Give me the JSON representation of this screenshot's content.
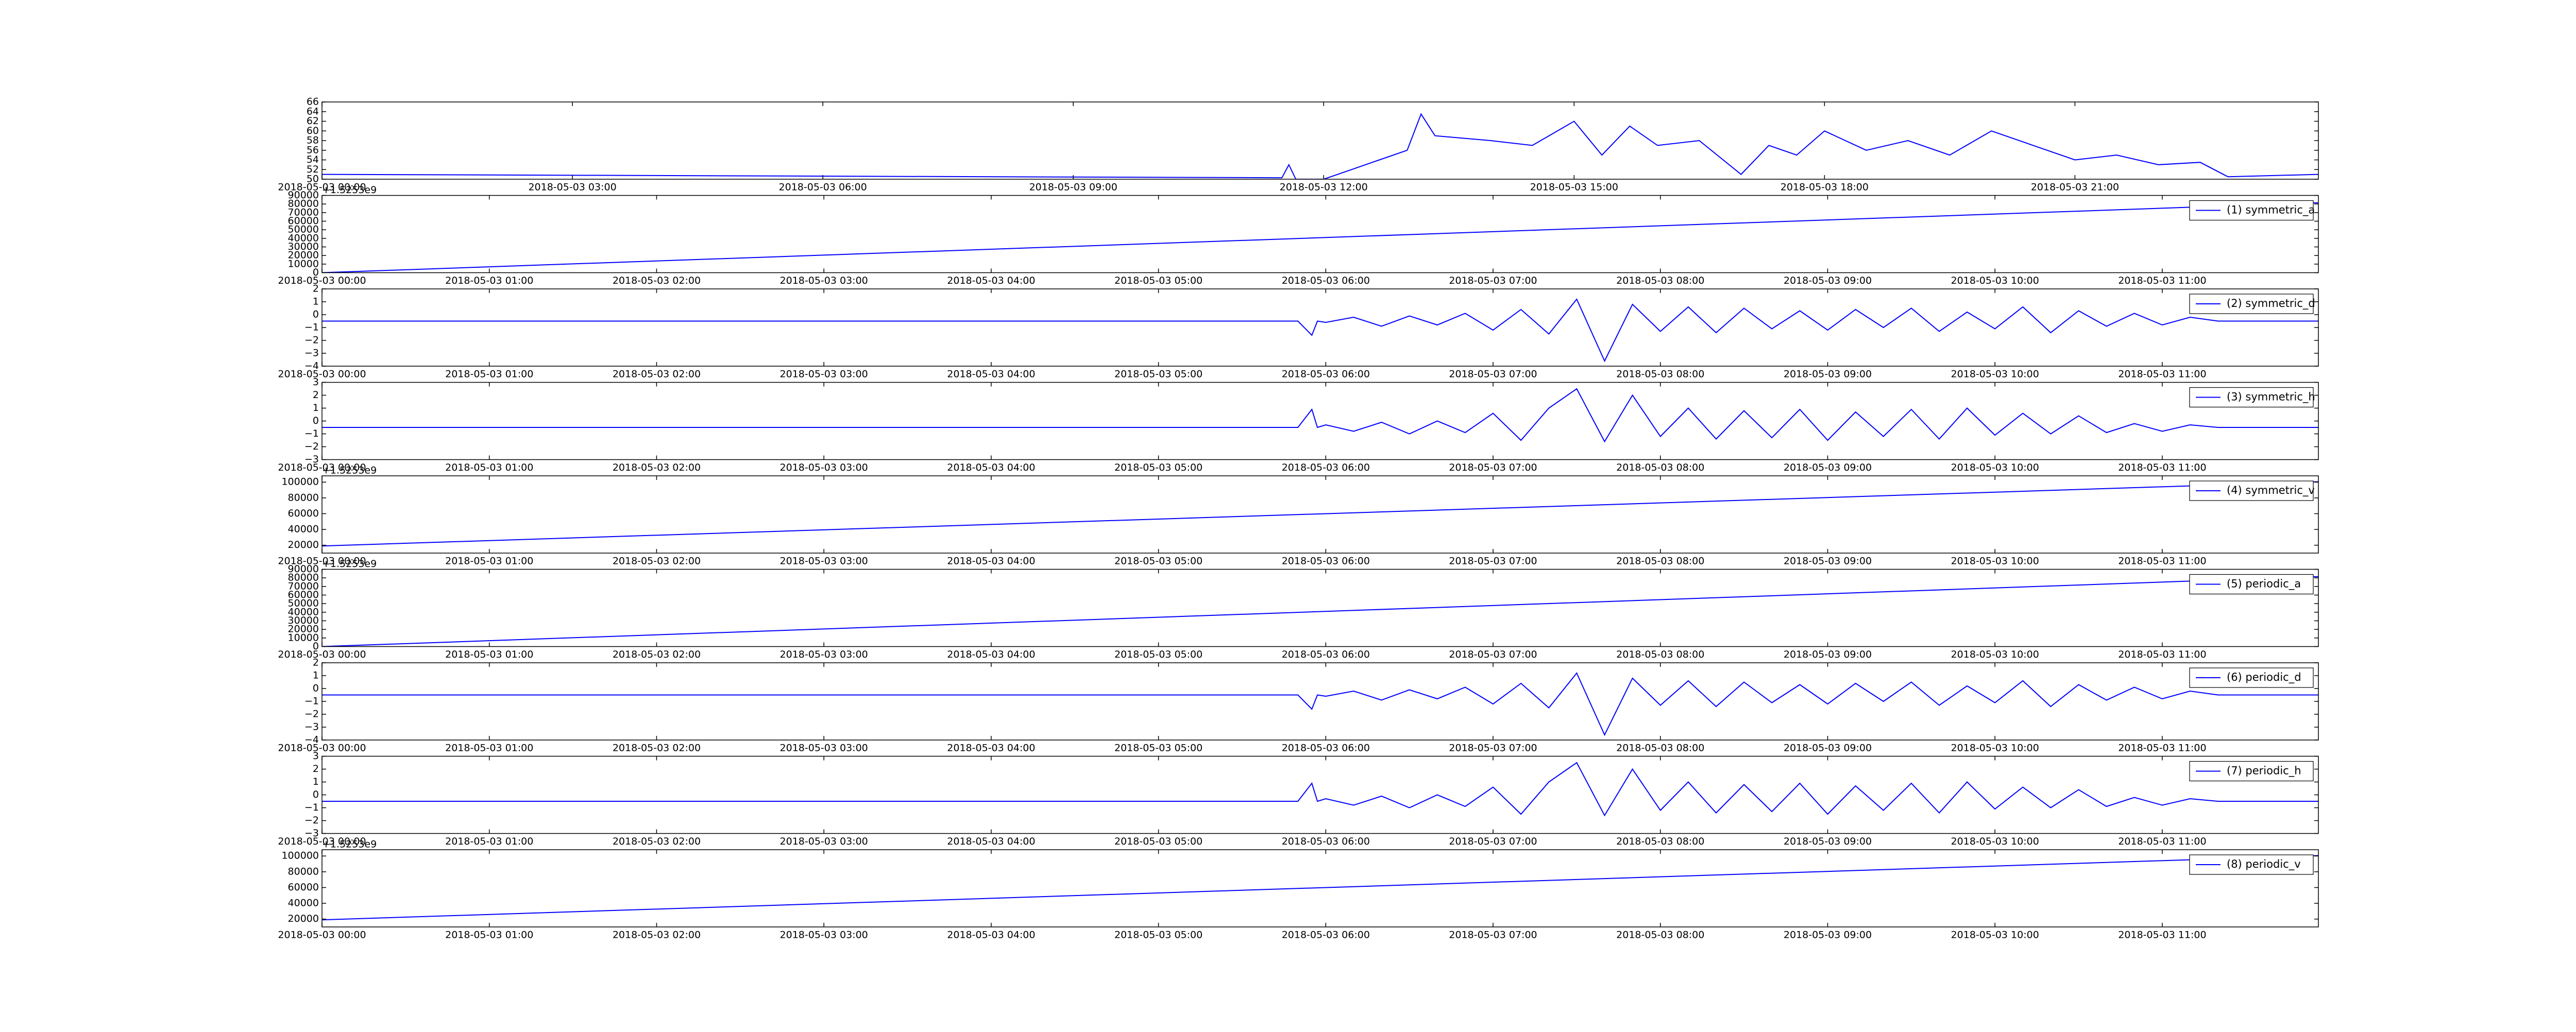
{
  "chart_data": [
    {
      "type": "line",
      "x": [
        "2018-05-03 00:00",
        "2018-05-03 11:30",
        "2018-05-03 11:35",
        "2018-05-03 11:40",
        "2018-05-03 12:00",
        "2018-05-03 12:20",
        "2018-05-03 12:40",
        "2018-05-03 13:00",
        "2018-05-03 13:10",
        "2018-05-03 13:20",
        "2018-05-03 14:00",
        "2018-05-03 14:30",
        "2018-05-03 15:00",
        "2018-05-03 15:20",
        "2018-05-03 15:40",
        "2018-05-03 16:00",
        "2018-05-03 16:30",
        "2018-05-03 17:00",
        "2018-05-03 17:20",
        "2018-05-03 17:40",
        "2018-05-03 18:00",
        "2018-05-03 18:30",
        "2018-05-03 19:00",
        "2018-05-03 19:30",
        "2018-05-03 20:00",
        "2018-05-03 20:30",
        "2018-05-03 21:00",
        "2018-05-03 21:30",
        "2018-05-03 22:00",
        "2018-05-03 22:30",
        "2018-05-03 22:50",
        "2018-05-03 23:55"
      ],
      "series": [
        {
          "color": "#0000ff",
          "values": [
            51,
            50.3,
            53,
            50,
            50,
            52,
            54,
            56,
            63.5,
            59,
            58,
            57,
            62,
            55,
            61,
            57,
            58,
            51,
            57,
            55,
            60,
            56,
            58,
            55,
            60,
            57,
            54,
            55,
            53,
            53.5,
            50.5,
            51
          ]
        }
      ],
      "xlim": [
        "2018-05-03 00:00",
        "2018-05-03 23:55"
      ],
      "xticks": [
        "2018-05-03 00:00",
        "2018-05-03 03:00",
        "2018-05-03 06:00",
        "2018-05-03 09:00",
        "2018-05-03 12:00",
        "2018-05-03 15:00",
        "2018-05-03 18:00",
        "2018-05-03 21:00"
      ],
      "ylim": [
        50,
        66
      ],
      "yticks": [
        50,
        52,
        54,
        56,
        58,
        60,
        62,
        64,
        66
      ]
    },
    {
      "type": "line",
      "x": [
        "2018-05-03 00:00",
        "2018-05-03 11:56"
      ],
      "offset_text": "+1.5253e9",
      "series": [
        {
          "name": "(1) symmetric_a",
          "color": "#0000ff",
          "values": [
            0,
            81500
          ]
        }
      ],
      "xlim": [
        "2018-05-03 00:00",
        "2018-05-03 11:56"
      ],
      "xticks": [
        "2018-05-03 00:00",
        "2018-05-03 01:00",
        "2018-05-03 02:00",
        "2018-05-03 03:00",
        "2018-05-03 04:00",
        "2018-05-03 05:00",
        "2018-05-03 06:00",
        "2018-05-03 07:00",
        "2018-05-03 08:00",
        "2018-05-03 09:00",
        "2018-05-03 10:00",
        "2018-05-03 11:00"
      ],
      "ylim": [
        0,
        90000
      ],
      "yticks": [
        0,
        10000,
        20000,
        30000,
        40000,
        50000,
        60000,
        70000,
        80000,
        90000
      ],
      "legend": "upper right"
    },
    {
      "type": "line",
      "x": [
        "2018-05-03 00:00",
        "2018-05-03 05:50",
        "2018-05-03 05:55",
        "2018-05-03 05:57",
        "2018-05-03 06:00",
        "2018-05-03 06:10",
        "2018-05-03 06:20",
        "2018-05-03 06:30",
        "2018-05-03 06:40",
        "2018-05-03 06:50",
        "2018-05-03 07:00",
        "2018-05-03 07:10",
        "2018-05-03 07:20",
        "2018-05-03 07:30",
        "2018-05-03 07:40",
        "2018-05-03 07:50",
        "2018-05-03 08:00",
        "2018-05-03 08:10",
        "2018-05-03 08:20",
        "2018-05-03 08:30",
        "2018-05-03 08:40",
        "2018-05-03 08:50",
        "2018-05-03 09:00",
        "2018-05-03 09:10",
        "2018-05-03 09:20",
        "2018-05-03 09:30",
        "2018-05-03 09:40",
        "2018-05-03 09:50",
        "2018-05-03 10:00",
        "2018-05-03 10:10",
        "2018-05-03 10:20",
        "2018-05-03 10:30",
        "2018-05-03 10:40",
        "2018-05-03 10:50",
        "2018-05-03 11:00",
        "2018-05-03 11:10",
        "2018-05-03 11:20",
        "2018-05-03 11:56"
      ],
      "series": [
        {
          "name": "(2) symmetric_d",
          "color": "#0000ff",
          "values": [
            -0.5,
            -0.5,
            -1.6,
            -0.5,
            -0.6,
            -0.2,
            -0.9,
            -0.1,
            -0.8,
            0.1,
            -1.2,
            0.4,
            -1.5,
            1.2,
            -3.6,
            0.8,
            -1.3,
            0.6,
            -1.4,
            0.5,
            -1.1,
            0.3,
            -1.2,
            0.4,
            -1.0,
            0.5,
            -1.3,
            0.2,
            -1.1,
            0.6,
            -1.4,
            0.3,
            -0.9,
            0.1,
            -0.8,
            -0.2,
            -0.5,
            -0.5
          ]
        }
      ],
      "xlim": [
        "2018-05-03 00:00",
        "2018-05-03 11:56"
      ],
      "xticks": [
        "2018-05-03 00:00",
        "2018-05-03 01:00",
        "2018-05-03 02:00",
        "2018-05-03 03:00",
        "2018-05-03 04:00",
        "2018-05-03 05:00",
        "2018-05-03 06:00",
        "2018-05-03 07:00",
        "2018-05-03 08:00",
        "2018-05-03 09:00",
        "2018-05-03 10:00",
        "2018-05-03 11:00"
      ],
      "ylim": [
        -4,
        2
      ],
      "yticks": [
        {
          "value": -4,
          "label": "−4"
        },
        {
          "value": -3,
          "label": "−3"
        },
        {
          "value": -2,
          "label": "−2"
        },
        {
          "value": -1,
          "label": "−1"
        },
        0,
        1,
        2
      ],
      "legend": "upper right"
    },
    {
      "type": "line",
      "x": [
        "2018-05-03 00:00",
        "2018-05-03 05:50",
        "2018-05-03 05:55",
        "2018-05-03 05:57",
        "2018-05-03 06:00",
        "2018-05-03 06:10",
        "2018-05-03 06:20",
        "2018-05-03 06:30",
        "2018-05-03 06:40",
        "2018-05-03 06:50",
        "2018-05-03 07:00",
        "2018-05-03 07:10",
        "2018-05-03 07:20",
        "2018-05-03 07:30",
        "2018-05-03 07:40",
        "2018-05-03 07:50",
        "2018-05-03 08:00",
        "2018-05-03 08:10",
        "2018-05-03 08:20",
        "2018-05-03 08:30",
        "2018-05-03 08:40",
        "2018-05-03 08:50",
        "2018-05-03 09:00",
        "2018-05-03 09:10",
        "2018-05-03 09:20",
        "2018-05-03 09:30",
        "2018-05-03 09:40",
        "2018-05-03 09:50",
        "2018-05-03 10:00",
        "2018-05-03 10:10",
        "2018-05-03 10:20",
        "2018-05-03 10:30",
        "2018-05-03 10:40",
        "2018-05-03 10:50",
        "2018-05-03 11:00",
        "2018-05-03 11:10",
        "2018-05-03 11:20",
        "2018-05-03 11:56"
      ],
      "series": [
        {
          "name": "(3) symmetric_h",
          "color": "#0000ff",
          "values": [
            -0.5,
            -0.5,
            0.9,
            -0.5,
            -0.3,
            -0.8,
            -0.1,
            -1.0,
            0.0,
            -0.9,
            0.6,
            -1.5,
            1.0,
            2.5,
            -1.6,
            2.0,
            -1.2,
            1.0,
            -1.4,
            0.8,
            -1.3,
            0.9,
            -1.5,
            0.7,
            -1.2,
            0.9,
            -1.4,
            1.0,
            -1.1,
            0.6,
            -1.0,
            0.4,
            -0.9,
            -0.2,
            -0.8,
            -0.3,
            -0.5,
            -0.5
          ]
        }
      ],
      "xlim": [
        "2018-05-03 00:00",
        "2018-05-03 11:56"
      ],
      "xticks": [
        "2018-05-03 00:00",
        "2018-05-03 01:00",
        "2018-05-03 02:00",
        "2018-05-03 03:00",
        "2018-05-03 04:00",
        "2018-05-03 05:00",
        "2018-05-03 06:00",
        "2018-05-03 07:00",
        "2018-05-03 08:00",
        "2018-05-03 09:00",
        "2018-05-03 10:00",
        "2018-05-03 11:00"
      ],
      "ylim": [
        -3,
        3
      ],
      "yticks": [
        {
          "value": -3,
          "label": "−3"
        },
        {
          "value": -2,
          "label": "−2"
        },
        {
          "value": -1,
          "label": "−1"
        },
        0,
        1,
        2,
        3
      ],
      "legend": "upper right"
    },
    {
      "type": "line",
      "x": [
        "2018-05-03 00:00",
        "2018-05-03 11:56"
      ],
      "offset_text": "+1.5253e9",
      "series": [
        {
          "name": "(4) symmetric_v",
          "color": "#0000ff",
          "values": [
            19000,
            100500
          ]
        }
      ],
      "xlim": [
        "2018-05-03 00:00",
        "2018-05-03 11:56"
      ],
      "xticks": [
        "2018-05-03 00:00",
        "2018-05-03 01:00",
        "2018-05-03 02:00",
        "2018-05-03 03:00",
        "2018-05-03 04:00",
        "2018-05-03 05:00",
        "2018-05-03 06:00",
        "2018-05-03 07:00",
        "2018-05-03 08:00",
        "2018-05-03 09:00",
        "2018-05-03 10:00",
        "2018-05-03 11:00"
      ],
      "ylim": [
        10000,
        108000
      ],
      "yticks": [
        20000,
        40000,
        60000,
        80000,
        100000
      ],
      "legend": "upper right"
    },
    {
      "type": "line",
      "x": [
        "2018-05-03 00:00",
        "2018-05-03 11:56"
      ],
      "offset_text": "+1.5253e9",
      "series": [
        {
          "name": "(5) periodic_a",
          "color": "#0000ff",
          "values": [
            0,
            81500
          ]
        }
      ],
      "xlim": [
        "2018-05-03 00:00",
        "2018-05-03 11:56"
      ],
      "xticks": [
        "2018-05-03 00:00",
        "2018-05-03 01:00",
        "2018-05-03 02:00",
        "2018-05-03 03:00",
        "2018-05-03 04:00",
        "2018-05-03 05:00",
        "2018-05-03 06:00",
        "2018-05-03 07:00",
        "2018-05-03 08:00",
        "2018-05-03 09:00",
        "2018-05-03 10:00",
        "2018-05-03 11:00"
      ],
      "ylim": [
        0,
        90000
      ],
      "yticks": [
        0,
        10000,
        20000,
        30000,
        40000,
        50000,
        60000,
        70000,
        80000,
        90000
      ],
      "legend": "upper right"
    },
    {
      "type": "line",
      "x": [
        "2018-05-03 00:00",
        "2018-05-03 05:50",
        "2018-05-03 05:55",
        "2018-05-03 05:57",
        "2018-05-03 06:00",
        "2018-05-03 06:10",
        "2018-05-03 06:20",
        "2018-05-03 06:30",
        "2018-05-03 06:40",
        "2018-05-03 06:50",
        "2018-05-03 07:00",
        "2018-05-03 07:10",
        "2018-05-03 07:20",
        "2018-05-03 07:30",
        "2018-05-03 07:40",
        "2018-05-03 07:50",
        "2018-05-03 08:00",
        "2018-05-03 08:10",
        "2018-05-03 08:20",
        "2018-05-03 08:30",
        "2018-05-03 08:40",
        "2018-05-03 08:50",
        "2018-05-03 09:00",
        "2018-05-03 09:10",
        "2018-05-03 09:20",
        "2018-05-03 09:30",
        "2018-05-03 09:40",
        "2018-05-03 09:50",
        "2018-05-03 10:00",
        "2018-05-03 10:10",
        "2018-05-03 10:20",
        "2018-05-03 10:30",
        "2018-05-03 10:40",
        "2018-05-03 10:50",
        "2018-05-03 11:00",
        "2018-05-03 11:10",
        "2018-05-03 11:20",
        "2018-05-03 11:56"
      ],
      "series": [
        {
          "name": "(6) periodic_d",
          "color": "#0000ff",
          "values": [
            -0.5,
            -0.5,
            -1.6,
            -0.5,
            -0.6,
            -0.2,
            -0.9,
            -0.1,
            -0.8,
            0.1,
            -1.2,
            0.4,
            -1.5,
            1.2,
            -3.6,
            0.8,
            -1.3,
            0.6,
            -1.4,
            0.5,
            -1.1,
            0.3,
            -1.2,
            0.4,
            -1.0,
            0.5,
            -1.3,
            0.2,
            -1.1,
            0.6,
            -1.4,
            0.3,
            -0.9,
            0.1,
            -0.8,
            -0.2,
            -0.5,
            -0.5
          ]
        }
      ],
      "xlim": [
        "2018-05-03 00:00",
        "2018-05-03 11:56"
      ],
      "xticks": [
        "2018-05-03 00:00",
        "2018-05-03 01:00",
        "2018-05-03 02:00",
        "2018-05-03 03:00",
        "2018-05-03 04:00",
        "2018-05-03 05:00",
        "2018-05-03 06:00",
        "2018-05-03 07:00",
        "2018-05-03 08:00",
        "2018-05-03 09:00",
        "2018-05-03 10:00",
        "2018-05-03 11:00"
      ],
      "ylim": [
        -4,
        2
      ],
      "yticks": [
        {
          "value": -4,
          "label": "−4"
        },
        {
          "value": -3,
          "label": "−3"
        },
        {
          "value": -2,
          "label": "−2"
        },
        {
          "value": -1,
          "label": "−1"
        },
        0,
        1,
        2
      ],
      "legend": "upper right"
    },
    {
      "type": "line",
      "x": [
        "2018-05-03 00:00",
        "2018-05-03 05:50",
        "2018-05-03 05:55",
        "2018-05-03 05:57",
        "2018-05-03 06:00",
        "2018-05-03 06:10",
        "2018-05-03 06:20",
        "2018-05-03 06:30",
        "2018-05-03 06:40",
        "2018-05-03 06:50",
        "2018-05-03 07:00",
        "2018-05-03 07:10",
        "2018-05-03 07:20",
        "2018-05-03 07:30",
        "2018-05-03 07:40",
        "2018-05-03 07:50",
        "2018-05-03 08:00",
        "2018-05-03 08:10",
        "2018-05-03 08:20",
        "2018-05-03 08:30",
        "2018-05-03 08:40",
        "2018-05-03 08:50",
        "2018-05-03 09:00",
        "2018-05-03 09:10",
        "2018-05-03 09:20",
        "2018-05-03 09:30",
        "2018-05-03 09:40",
        "2018-05-03 09:50",
        "2018-05-03 10:00",
        "2018-05-03 10:10",
        "2018-05-03 10:20",
        "2018-05-03 10:30",
        "2018-05-03 10:40",
        "2018-05-03 10:50",
        "2018-05-03 11:00",
        "2018-05-03 11:10",
        "2018-05-03 11:20",
        "2018-05-03 11:56"
      ],
      "series": [
        {
          "name": "(7) periodic_h",
          "color": "#0000ff",
          "values": [
            -0.5,
            -0.5,
            0.9,
            -0.5,
            -0.3,
            -0.8,
            -0.1,
            -1.0,
            0.0,
            -0.9,
            0.6,
            -1.5,
            1.0,
            2.5,
            -1.6,
            2.0,
            -1.2,
            1.0,
            -1.4,
            0.8,
            -1.3,
            0.9,
            -1.5,
            0.7,
            -1.2,
            0.9,
            -1.4,
            1.0,
            -1.1,
            0.6,
            -1.0,
            0.4,
            -0.9,
            -0.2,
            -0.8,
            -0.3,
            -0.5,
            -0.5
          ]
        }
      ],
      "xlim": [
        "2018-05-03 00:00",
        "2018-05-03 11:56"
      ],
      "xticks": [
        "2018-05-03 00:00",
        "2018-05-03 01:00",
        "2018-05-03 02:00",
        "2018-05-03 03:00",
        "2018-05-03 04:00",
        "2018-05-03 05:00",
        "2018-05-03 06:00",
        "2018-05-03 07:00",
        "2018-05-03 08:00",
        "2018-05-03 09:00",
        "2018-05-03 10:00",
        "2018-05-03 11:00"
      ],
      "ylim": [
        -3,
        3
      ],
      "yticks": [
        {
          "value": -3,
          "label": "−3"
        },
        {
          "value": -2,
          "label": "−2"
        },
        {
          "value": -1,
          "label": "−1"
        },
        0,
        1,
        2,
        3
      ],
      "legend": "upper right"
    },
    {
      "type": "line",
      "x": [
        "2018-05-03 00:00",
        "2018-05-03 11:56"
      ],
      "offset_text": "+1.5253e9",
      "series": [
        {
          "name": "(8) periodic_v",
          "color": "#0000ff",
          "values": [
            19000,
            100500
          ]
        }
      ],
      "xlim": [
        "2018-05-03 00:00",
        "2018-05-03 11:56"
      ],
      "xticks": [
        "2018-05-03 00:00",
        "2018-05-03 01:00",
        "2018-05-03 02:00",
        "2018-05-03 03:00",
        "2018-05-03 04:00",
        "2018-05-03 05:00",
        "2018-05-03 06:00",
        "2018-05-03 07:00",
        "2018-05-03 08:00",
        "2018-05-03 09:00",
        "2018-05-03 10:00",
        "2018-05-03 11:00"
      ],
      "ylim": [
        10000,
        108000
      ],
      "yticks": [
        20000,
        40000,
        60000,
        80000,
        100000
      ],
      "legend": "upper right"
    }
  ]
}
